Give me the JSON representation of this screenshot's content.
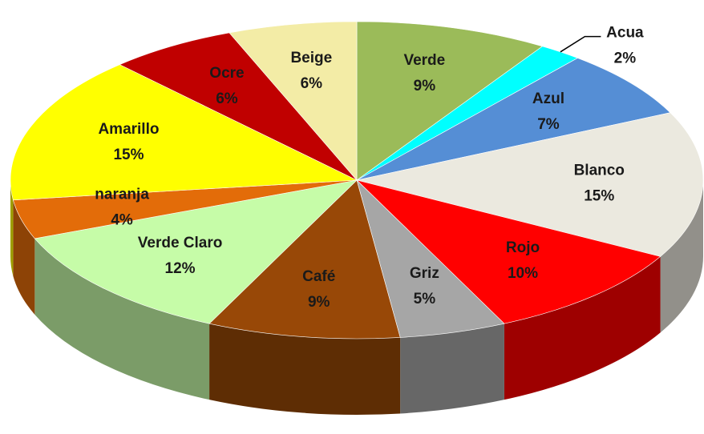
{
  "chart_data": {
    "type": "pie",
    "categories": [
      "Verde",
      "Acua",
      "Azul",
      "Blanco",
      "Rojo",
      "Griz",
      "Café",
      "Verde Claro",
      "naranja",
      "Amarillo",
      "Ocre",
      "Beige"
    ],
    "values": [
      9,
      2,
      7,
      15,
      10,
      5,
      9,
      12,
      4,
      15,
      6,
      6
    ],
    "value_labels": [
      "9%",
      "2%",
      "7%",
      "15%",
      "10%",
      "5%",
      "9%",
      "12%",
      "4%",
      "15%",
      "6%",
      "6%"
    ],
    "colors": [
      "#9bbb59",
      "#00ffff",
      "#558ed5",
      "#ebe9df",
      "#ff0000",
      "#a6a6a6",
      "#984807",
      "#c6fca8",
      "#e36c09",
      "#ffff00",
      "#c00000",
      "#f3eca6"
    ]
  }
}
